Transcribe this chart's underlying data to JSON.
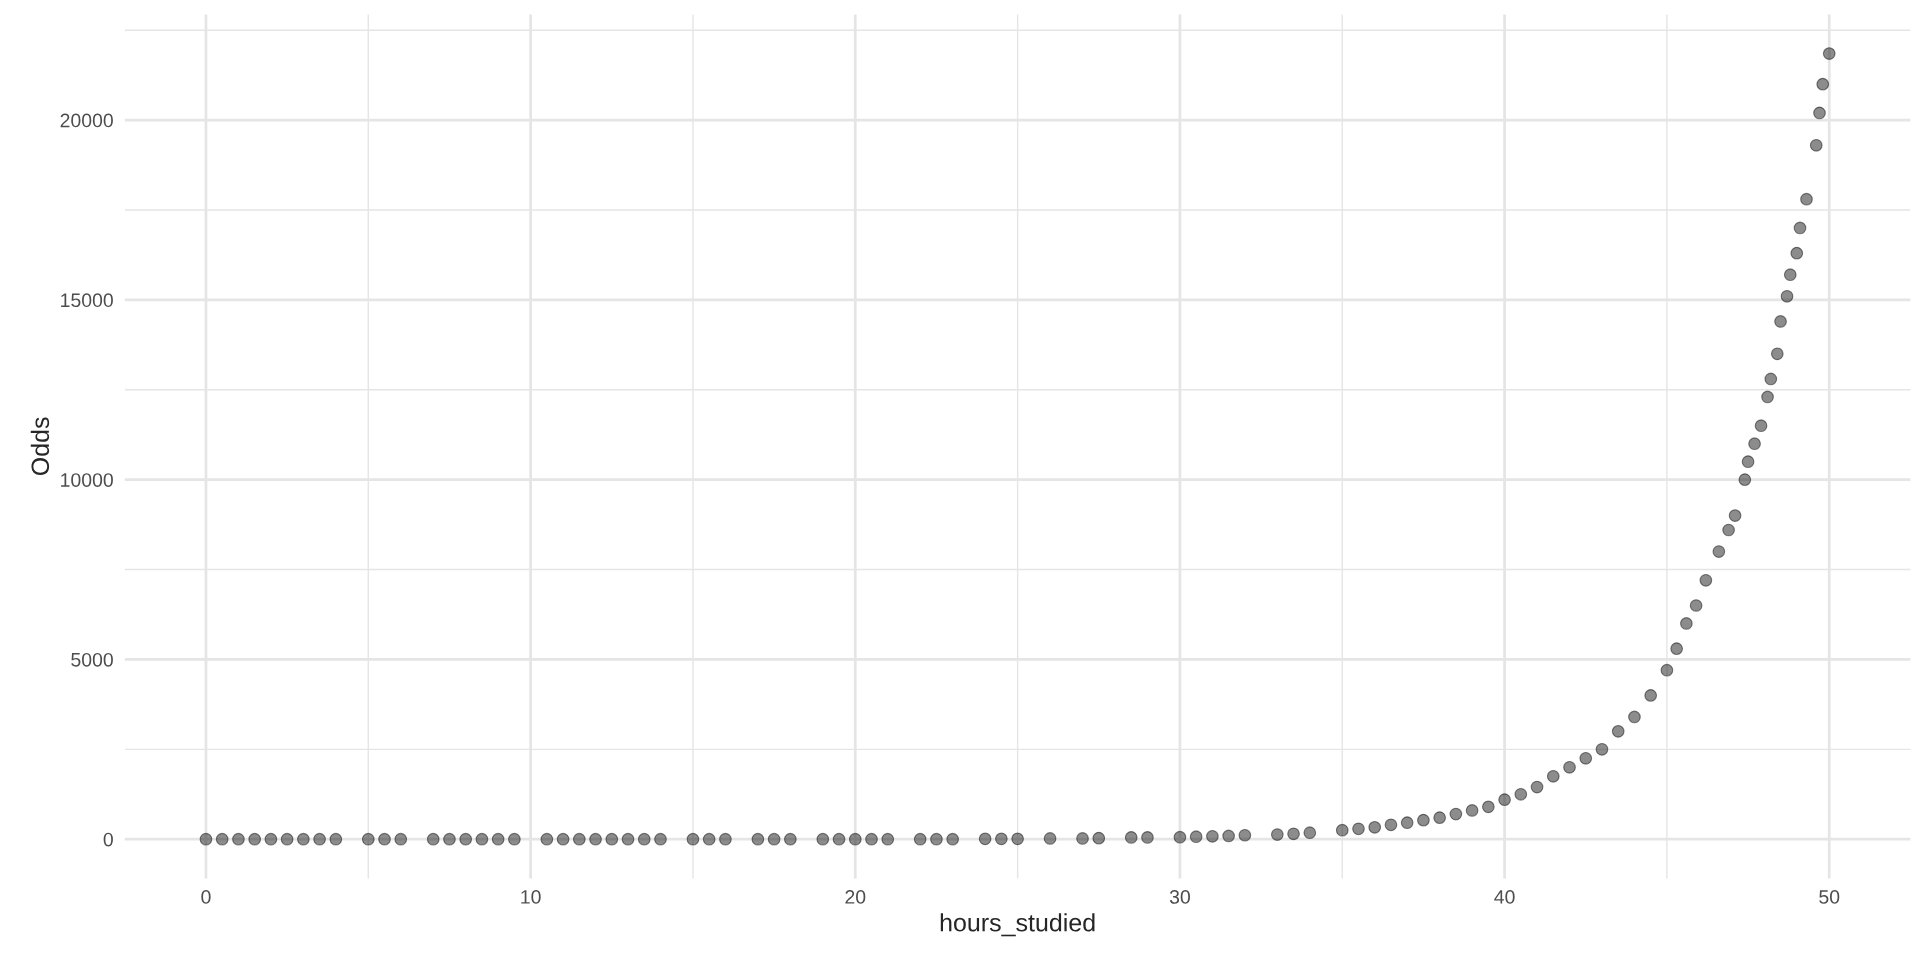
{
  "chart_data": {
    "type": "scatter",
    "xlabel": "hours_studied",
    "ylabel": "Odds",
    "x": [
      0,
      0.5,
      1,
      1.5,
      2,
      2.5,
      3,
      3.5,
      4,
      5,
      5.5,
      6,
      7,
      7.5,
      8,
      8.5,
      9,
      9.5,
      10.5,
      11,
      11.5,
      12,
      12.5,
      13,
      13.5,
      14,
      15,
      15.5,
      16,
      17,
      17.5,
      18,
      19,
      19.5,
      20,
      20.5,
      21,
      22,
      22.5,
      23,
      24,
      24.5,
      25,
      26,
      27,
      27.5,
      28.5,
      29,
      30,
      30.5,
      31,
      31.5,
      32,
      33,
      33.5,
      34,
      35,
      35.5,
      36,
      36.5,
      37,
      37.5,
      38,
      38.5,
      39,
      39.5,
      40,
      40.5,
      41,
      41.5,
      42,
      42.5,
      43,
      43.5,
      44,
      44.5,
      45,
      45.3,
      45.6,
      45.9,
      46.2,
      46.6,
      46.9,
      47.1,
      47.4,
      47.5,
      47.7,
      47.9,
      48.1,
      48.2,
      48.4,
      48.5,
      48.7,
      48.8,
      49,
      49.1,
      49.3,
      49.6,
      49.7,
      49.8,
      50
    ],
    "series": [
      {
        "color": "#000000",
        "values": [
          0,
          0,
          0,
          0,
          0,
          0,
          0,
          0,
          0,
          0,
          0,
          0,
          0,
          0,
          0,
          0,
          0,
          0,
          0,
          0,
          0,
          0,
          0,
          0,
          0,
          0,
          0,
          0,
          0,
          0,
          0,
          0,
          0,
          0,
          0,
          0,
          0,
          0,
          0,
          0,
          10,
          10,
          10,
          20,
          20,
          30,
          50,
          50,
          55,
          70,
          80,
          90,
          110,
          130,
          150,
          180,
          250,
          290,
          330,
          400,
          460,
          530,
          600,
          700,
          800,
          900,
          1100,
          1250,
          1450,
          1750,
          2000,
          2250,
          2500,
          3000,
          3400,
          4000,
          4700,
          5300,
          6000,
          6500,
          7200,
          8000,
          8600,
          9000,
          10000,
          10500,
          11000,
          11500,
          12300,
          12800,
          13500,
          14400,
          15100,
          15700,
          16300,
          17000,
          17800,
          19300,
          20200,
          21000,
          21850
        ]
      }
    ],
    "xlim": [
      -2.5,
      52.5
    ],
    "ylim": [
      -1090,
      22940
    ],
    "xticks": [
      0,
      {
        "value": 5,
        "label": null
      },
      10,
      {
        "value": 15,
        "label": null
      },
      20,
      {
        "value": 25,
        "label": null
      },
      30,
      {
        "value": 35,
        "label": null
      },
      40,
      {
        "value": 45,
        "label": null
      },
      50
    ],
    "yticks": [
      0,
      {
        "value": 2500,
        "label": null
      },
      5000,
      {
        "value": 7500,
        "label": null
      },
      10000,
      {
        "value": 12500,
        "label": null
      },
      15000,
      {
        "value": 17500,
        "label": null
      },
      20000,
      {
        "value": 22500,
        "label": null
      }
    ],
    "grid": true,
    "marker": "circle"
  }
}
